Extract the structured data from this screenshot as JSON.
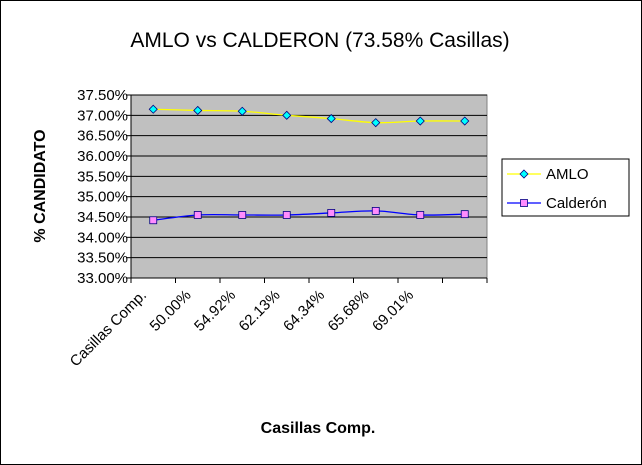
{
  "chart_data": {
    "type": "line",
    "title": "AMLO  vs  CALDERON (73.58% Casillas)",
    "xlabel": "Casillas Comp.",
    "ylabel": "% CANDIDATO",
    "categories": [
      "Casillas Comp.",
      "50.00%",
      "54.92%",
      "62.13%",
      "64.34%",
      "65.68%",
      "69.01%",
      ""
    ],
    "series": [
      {
        "name": "AMLO",
        "color": "#ffff00",
        "marker_color": "#00ffff",
        "marker": "diamond",
        "values": [
          37.15,
          37.12,
          37.1,
          37.0,
          36.92,
          36.82,
          36.86,
          36.86
        ]
      },
      {
        "name": "Calderón",
        "color": "#0000ff",
        "marker_color": "#ff8cff",
        "marker": "square",
        "values": [
          34.42,
          34.55,
          34.55,
          34.55,
          34.6,
          34.65,
          34.55,
          34.57
        ]
      }
    ],
    "ylim": [
      33.0,
      37.5
    ],
    "ytick_step": 0.5,
    "yticks": [
      "33.00%",
      "33.50%",
      "34.00%",
      "34.50%",
      "35.00%",
      "35.50%",
      "36.00%",
      "36.50%",
      "37.00%",
      "37.50%"
    ],
    "grid": true,
    "plot_background": "#c0c0c0",
    "legend": "right"
  }
}
